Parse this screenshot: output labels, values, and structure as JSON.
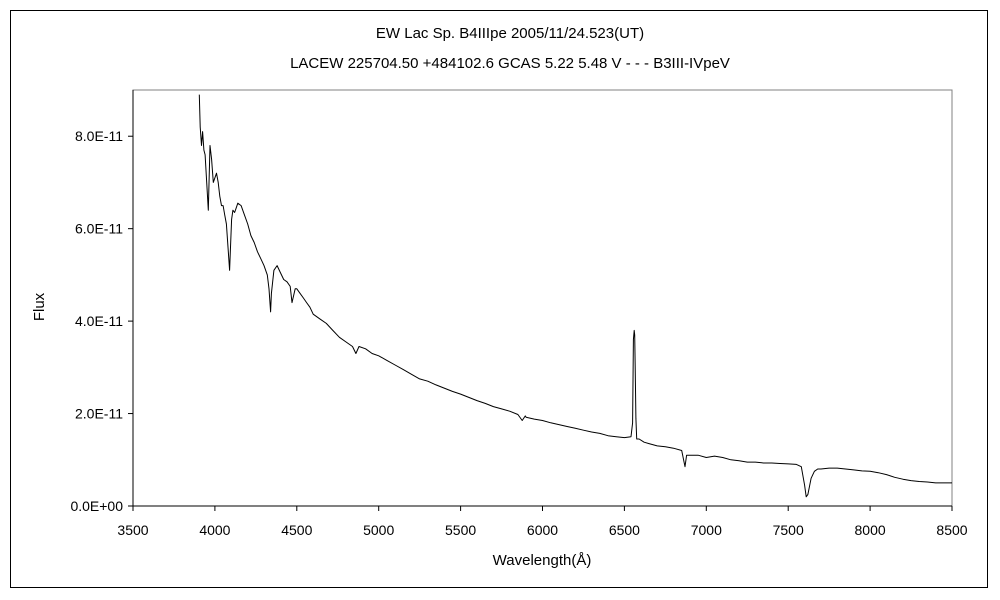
{
  "chart_data": {
    "type": "line",
    "title": "EW Lac    Sp. B4IIIpe    2005/11/24.523(UT)",
    "subtitle": "LACEW 225704.50 +484102.6 GCAS 5.22 5.48 V - - - B3III-IVpeV",
    "xlabel": "Wavelength(Å)",
    "ylabel": "Flux",
    "xlim": [
      3500,
      8500
    ],
    "ylim": [
      0,
      9e-11
    ],
    "x_ticks": [
      "3500",
      "4000",
      "4500",
      "5000",
      "5500",
      "6000",
      "6500",
      "7000",
      "7500",
      "8000",
      "8500"
    ],
    "y_ticks": [
      "0.0E+00",
      "2.0E-11",
      "4.0E-11",
      "6.0E-11",
      "8.0E-11"
    ],
    "grid": false,
    "legend": "none",
    "series": [
      {
        "color": "#000000",
        "x": [
          3905,
          3910,
          3918,
          3925,
          3933,
          3940,
          3950,
          3960,
          3970,
          3980,
          3990,
          4000,
          4010,
          4020,
          4030,
          4040,
          4050,
          4060,
          4070,
          4080,
          4090,
          4095,
          4102,
          4110,
          4120,
          4130,
          4140,
          4160,
          4180,
          4200,
          4220,
          4240,
          4260,
          4280,
          4300,
          4320,
          4330,
          4340,
          4345,
          4360,
          4380,
          4400,
          4420,
          4440,
          4460,
          4471,
          4490,
          4500,
          4520,
          4540,
          4560,
          4580,
          4600,
          4640,
          4680,
          4720,
          4760,
          4800,
          4840,
          4861,
          4880,
          4920,
          4960,
          5000,
          5050,
          5100,
          5150,
          5200,
          5250,
          5300,
          5350,
          5400,
          5450,
          5500,
          5550,
          5600,
          5650,
          5700,
          5750,
          5800,
          5850,
          5876,
          5895,
          5900,
          5950,
          6000,
          6050,
          6100,
          6150,
          6200,
          6250,
          6300,
          6350,
          6400,
          6450,
          6500,
          6540,
          6550,
          6555,
          6560,
          6563,
          6566,
          6570,
          6575,
          6590,
          6620,
          6650,
          6700,
          6750,
          6800,
          6850,
          6870,
          6880,
          6900,
          6950,
          7000,
          7050,
          7100,
          7150,
          7200,
          7250,
          7300,
          7350,
          7400,
          7450,
          7500,
          7550,
          7580,
          7600,
          7610,
          7620,
          7640,
          7660,
          7680,
          7700,
          7750,
          7800,
          7850,
          7900,
          7950,
          8000,
          8050,
          8100,
          8150,
          8200,
          8250,
          8300,
          8350,
          8400,
          8450,
          8500
        ],
        "y": [
          8.9e-11,
          8.2e-11,
          7.8e-11,
          8.1e-11,
          7.7e-11,
          7.6e-11,
          7e-11,
          6.4e-11,
          7.8e-11,
          7.5e-11,
          7e-11,
          7.1e-11,
          7.2e-11,
          7e-11,
          6.7e-11,
          6.5e-11,
          6.5e-11,
          6.3e-11,
          6.1e-11,
          5.6e-11,
          5.1e-11,
          5.6e-11,
          6.2e-11,
          6.4e-11,
          6.35e-11,
          6.45e-11,
          6.55e-11,
          6.5e-11,
          6.3e-11,
          6.1e-11,
          5.85e-11,
          5.7e-11,
          5.5e-11,
          5.35e-11,
          5.2e-11,
          5e-11,
          4.7e-11,
          4.2e-11,
          4.6e-11,
          5.1e-11,
          5.2e-11,
          5.05e-11,
          4.9e-11,
          4.85e-11,
          4.75e-11,
          4.4e-11,
          4.7e-11,
          4.7e-11,
          4.6e-11,
          4.5e-11,
          4.4e-11,
          4.3e-11,
          4.15e-11,
          4.05e-11,
          3.95e-11,
          3.8e-11,
          3.65e-11,
          3.55e-11,
          3.45e-11,
          3.3e-11,
          3.45e-11,
          3.4e-11,
          3.3e-11,
          3.25e-11,
          3.15e-11,
          3.05e-11,
          2.95e-11,
          2.85e-11,
          2.75e-11,
          2.7e-11,
          2.62e-11,
          2.55e-11,
          2.48e-11,
          2.42e-11,
          2.35e-11,
          2.28e-11,
          2.22e-11,
          2.15e-11,
          2.1e-11,
          2.05e-11,
          1.98e-11,
          1.85e-11,
          1.95e-11,
          1.92e-11,
          1.88e-11,
          1.85e-11,
          1.8e-11,
          1.76e-11,
          1.72e-11,
          1.68e-11,
          1.64e-11,
          1.6e-11,
          1.57e-11,
          1.52e-11,
          1.5e-11,
          1.48e-11,
          1.5e-11,
          1.8e-11,
          3.6e-11,
          3.8e-11,
          3.7e-11,
          3e-11,
          1.9e-11,
          1.45e-11,
          1.45e-11,
          1.38e-11,
          1.35e-11,
          1.3e-11,
          1.28e-11,
          1.25e-11,
          1.2e-11,
          8.5e-12,
          1.1e-11,
          1.1e-11,
          1.1e-11,
          1.05e-11,
          1.08e-11,
          1.05e-11,
          1e-11,
          9.8e-12,
          9.5e-12,
          9.5e-12,
          9.3e-12,
          9.3e-12,
          9.2e-12,
          9.1e-12,
          9e-12,
          8.5e-12,
          4.5e-12,
          2e-12,
          2.5e-12,
          6e-12,
          7.5e-12,
          8e-12,
          8e-12,
          8.2e-12,
          8.2e-12,
          8e-12,
          7.8e-12,
          7.6e-12,
          7.5e-12,
          7.2e-12,
          6.8e-12,
          6.2e-12,
          5.8e-12,
          5.5e-12,
          5.3e-12,
          5.2e-12,
          5e-12,
          5e-12,
          5e-12
        ]
      }
    ]
  }
}
